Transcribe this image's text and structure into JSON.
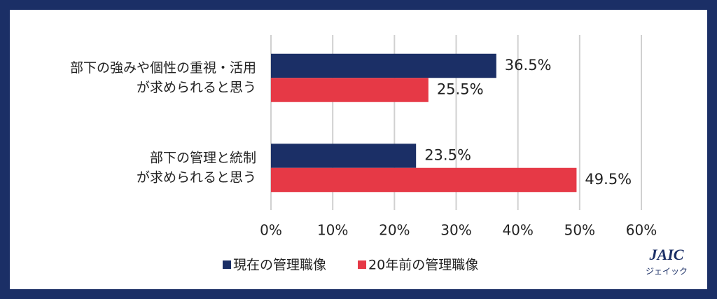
{
  "chart_data": {
    "type": "hbar",
    "categories": [
      [
        "部下の強みや個性の重視・活用",
        "が求められると思う"
      ],
      [
        "部下の管理と統制",
        "が求められると思う"
      ]
    ],
    "series": [
      {
        "name": "現在の管理職像",
        "color": "#1b2f66",
        "values": [
          36.5,
          23.5
        ],
        "value_labels": [
          "36.5%",
          "23.5%"
        ]
      },
      {
        "name": "20年前の管理職像",
        "color": "#e63946",
        "values": [
          25.5,
          49.5
        ],
        "value_labels": [
          "25.5%",
          "49.5%"
        ]
      }
    ],
    "xlim": [
      0,
      60
    ],
    "xticks": [
      {
        "value": 0,
        "label": "0%"
      },
      {
        "value": 10,
        "label": "10%"
      },
      {
        "value": 20,
        "label": "20%"
      },
      {
        "value": 30,
        "label": "30%"
      },
      {
        "value": 40,
        "label": "40%"
      },
      {
        "value": 50,
        "label": "50%"
      },
      {
        "value": 60,
        "label": "60%"
      }
    ],
    "grid": true,
    "legend": "bottom"
  },
  "logo": {
    "name": "JAIC",
    "subtitle": "ジェイック"
  }
}
